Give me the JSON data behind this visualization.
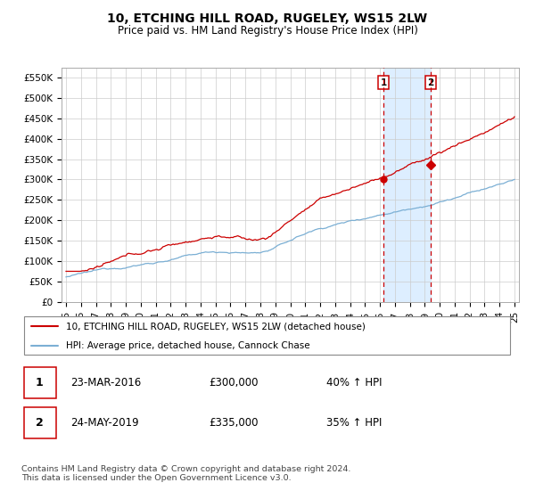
{
  "title": "10, ETCHING HILL ROAD, RUGELEY, WS15 2LW",
  "subtitle": "Price paid vs. HM Land Registry's House Price Index (HPI)",
  "ylim": [
    0,
    575000
  ],
  "yticks": [
    0,
    50000,
    100000,
    150000,
    200000,
    250000,
    300000,
    350000,
    400000,
    450000,
    500000,
    550000
  ],
  "ytick_labels": [
    "£0",
    "£50K",
    "£100K",
    "£150K",
    "£200K",
    "£250K",
    "£300K",
    "£350K",
    "£400K",
    "£450K",
    "£500K",
    "£550K"
  ],
  "sale1_date": 2016.23,
  "sale1_price": 300000,
  "sale2_date": 2019.39,
  "sale2_price": 335000,
  "sale1_text": "23-MAR-2016",
  "sale2_text": "24-MAY-2019",
  "sale1_amount": "£300,000",
  "sale2_amount": "£335,000",
  "sale1_hpi": "40% ↑ HPI",
  "sale2_hpi": "35% ↑ HPI",
  "hpi_color": "#7bafd4",
  "price_color": "#cc0000",
  "vline_color": "#cc0000",
  "span_color": "#ddeeff",
  "legend_label_price": "10, ETCHING HILL ROAD, RUGELEY, WS15 2LW (detached house)",
  "legend_label_hpi": "HPI: Average price, detached house, Cannock Chase",
  "footer": "Contains HM Land Registry data © Crown copyright and database right 2024.\nThis data is licensed under the Open Government Licence v3.0.",
  "grid_color": "#cccccc",
  "title_fontsize": 10,
  "subtitle_fontsize": 8.5
}
